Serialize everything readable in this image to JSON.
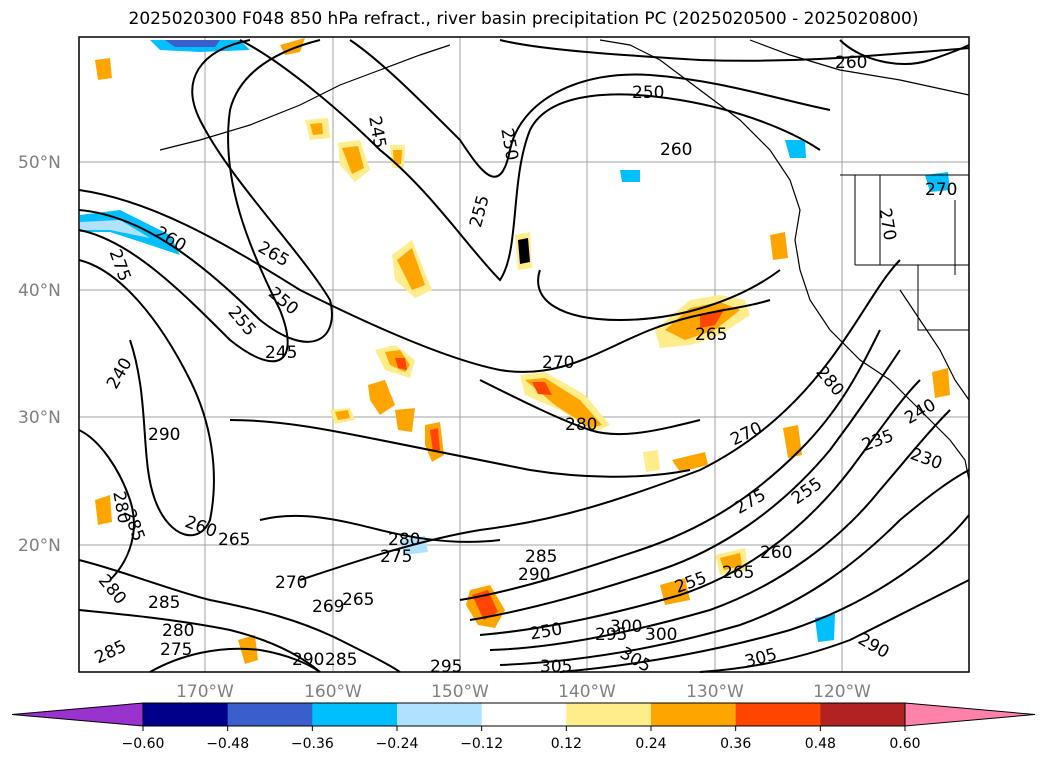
{
  "title": "2025020300 F048 850 hPa refract., river basin precipitation PC (2025020500 - 2025020800)",
  "lat_labels": [
    "50°N",
    "40°N",
    "30°N",
    "20°N"
  ],
  "lon_labels": [
    "170°W",
    "160°W",
    "150°W",
    "140°W",
    "130°W",
    "120°W"
  ],
  "colorbar": {
    "ticks": [
      "−0.60",
      "−0.48",
      "−0.36",
      "−0.24",
      "−0.12",
      "0.12",
      "0.24",
      "0.36",
      "0.48",
      "0.60"
    ],
    "colors": [
      "#9a32cd",
      "#00008b",
      "#3a5fcd",
      "#00bfff",
      "#b0e2ff",
      "#ffffff",
      "#ffec8b",
      "#ffa500",
      "#ff4500",
      "#b22222",
      "#ff82ab"
    ]
  },
  "contour_labels": [
    {
      "text": "260"
    },
    {
      "text": "250"
    },
    {
      "text": "260"
    },
    {
      "text": "270"
    },
    {
      "text": "270"
    },
    {
      "text": "245"
    },
    {
      "text": "250"
    },
    {
      "text": "255"
    },
    {
      "text": "265"
    },
    {
      "text": "250"
    },
    {
      "text": "255"
    },
    {
      "text": "245"
    },
    {
      "text": "260"
    },
    {
      "text": "275"
    },
    {
      "text": "240"
    },
    {
      "text": "270"
    },
    {
      "text": "265"
    },
    {
      "text": "280"
    },
    {
      "text": "290"
    },
    {
      "text": "270"
    },
    {
      "text": "280"
    },
    {
      "text": "240"
    },
    {
      "text": "230"
    },
    {
      "text": "235"
    },
    {
      "text": "275"
    },
    {
      "text": "255"
    },
    {
      "text": "280"
    },
    {
      "text": "285"
    },
    {
      "text": "260"
    },
    {
      "text": "265"
    },
    {
      "text": "280"
    },
    {
      "text": "275"
    },
    {
      "text": "285"
    },
    {
      "text": "290"
    },
    {
      "text": "260"
    },
    {
      "text": "265"
    },
    {
      "text": "255"
    },
    {
      "text": "280"
    },
    {
      "text": "285"
    },
    {
      "text": "270"
    },
    {
      "text": "269"
    },
    {
      "text": "265"
    },
    {
      "text": "285"
    },
    {
      "text": "280"
    },
    {
      "text": "275"
    },
    {
      "text": "285"
    },
    {
      "text": "290"
    },
    {
      "text": "295"
    },
    {
      "text": "300"
    },
    {
      "text": "250"
    },
    {
      "text": "295"
    },
    {
      "text": "300"
    },
    {
      "text": "305"
    },
    {
      "text": "305"
    },
    {
      "text": "305"
    },
    {
      "text": "290"
    }
  ]
}
